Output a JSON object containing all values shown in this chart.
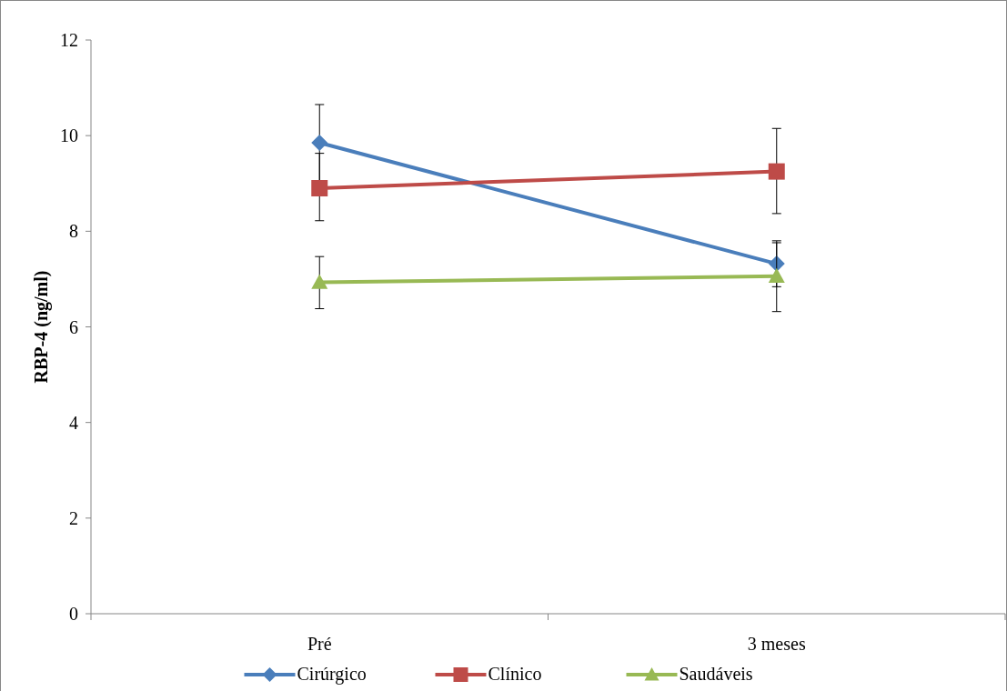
{
  "chart_data": {
    "type": "line",
    "ylabel": "RBP-4 (ng/ml)",
    "categories": [
      "Pré",
      "3 meses"
    ],
    "series": [
      {
        "name": "Cirúrgico",
        "color": "#4a7ebb",
        "marker": "diamond",
        "values": [
          9.85,
          7.32
        ],
        "errors": [
          [
            9.05,
            10.65
          ],
          [
            6.84,
            7.8
          ]
        ]
      },
      {
        "name": "Clínico",
        "color": "#be4b48",
        "marker": "square",
        "values": [
          8.9,
          9.25
        ],
        "errors": [
          [
            8.22,
            9.63
          ],
          [
            8.37,
            10.15
          ]
        ]
      },
      {
        "name": "Saudáveis",
        "color": "#98b954",
        "marker": "triangle",
        "values": [
          6.93,
          7.06
        ],
        "errors": [
          [
            6.38,
            7.47
          ],
          [
            6.32,
            7.76
          ]
        ]
      }
    ],
    "ylim": [
      0,
      12
    ],
    "yticks": [
      0,
      2,
      4,
      6,
      8,
      10,
      12
    ],
    "grid": false,
    "legend": "bottom",
    "line_style": "solid"
  }
}
